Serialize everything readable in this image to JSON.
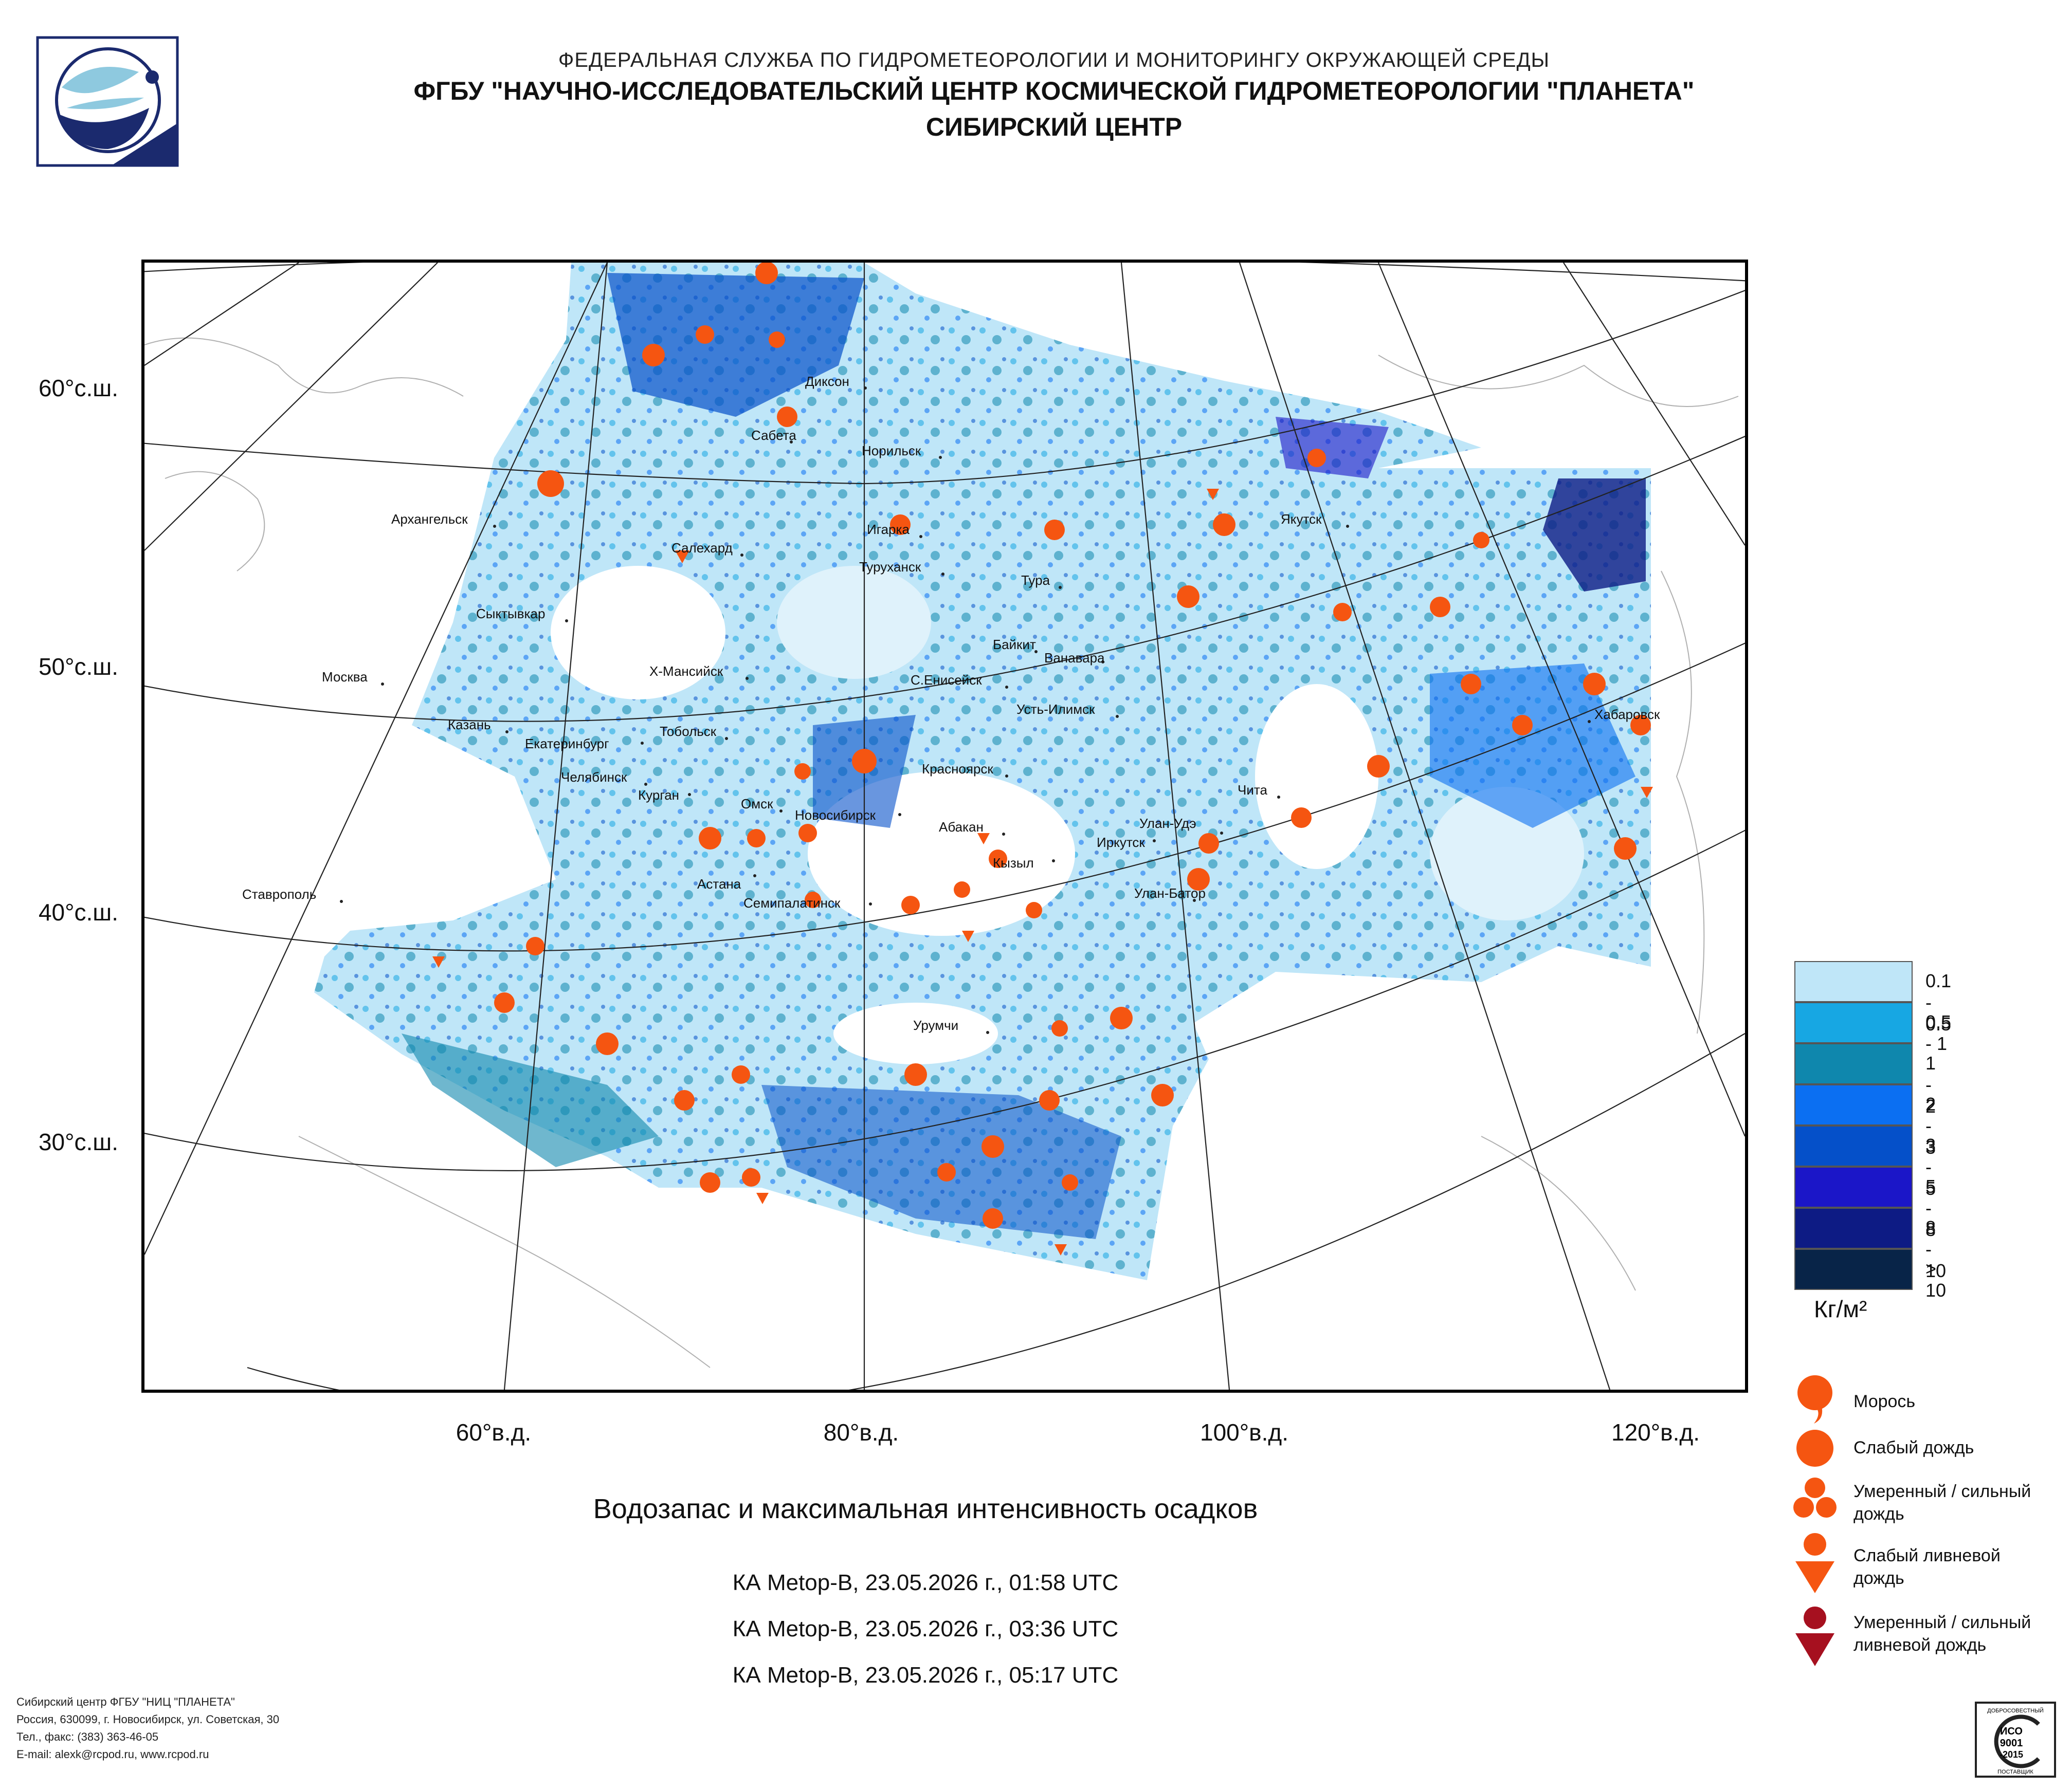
{
  "header": {
    "org": "ФЕДЕРАЛЬНАЯ СЛУЖБА ПО ГИДРОМЕТЕОРОЛОГИИ И МОНИТОРИНГУ ОКРУЖАЮЩЕЙ СРЕДЫ",
    "institute": "ФГБУ \"НАУЧНО-ИССЛЕДОВАТЕЛЬСКИЙ ЦЕНТР КОСМИЧЕСКОЙ ГИДРОМЕТЕОРОЛОГИИ \"ПЛАНЕТА\"",
    "center": "СИБИРСКИЙ ЦЕНТР"
  },
  "map": {
    "lat_labels": [
      "60°с.ш.",
      "50°с.ш.",
      "40°с.ш.",
      "30°с.ш."
    ],
    "lon_labels": [
      "60°в.д.",
      "80°в.д.",
      "100°в.д.",
      "120°в.д."
    ],
    "cities": [
      "Диксон",
      "Сабета",
      "Норильск",
      "Архангельск",
      "Игарка",
      "Салехард",
      "Туруханск",
      "Якутск",
      "Тура",
      "Сыктывкар",
      "Байкит",
      "Ванавара",
      "Москва",
      "Х-Мансийск",
      "С.Енисейск",
      "Усть-Илимск",
      "Хабаровск",
      "Казань",
      "Тобольск",
      "Екатеринбург",
      "Красноярск",
      "Челябинск",
      "Курган",
      "Чита",
      "Омск",
      "Новосибирск",
      "Улан-Удэ",
      "Абакан",
      "Иркутск",
      "Кызыл",
      "Астана",
      "Ставрополь",
      "Улан-Батор",
      "Семипалатинск",
      "Урумчи"
    ]
  },
  "legend": {
    "scale": [
      {
        "label": "0.1 - 0.5",
        "color": "#bfe6f8"
      },
      {
        "label": "0.5 - 1",
        "color": "#17a7e3"
      },
      {
        "label": "1 - 2",
        "color": "#0f87ad"
      },
      {
        "label": "2 - 3",
        "color": "#0b6ff2"
      },
      {
        "label": "3 - 5",
        "color": "#0550c9"
      },
      {
        "label": "5 - 8",
        "color": "#1b16c8"
      },
      {
        "label": "8 - 10",
        "color": "#0d1b84"
      },
      {
        "label": "> 10",
        "color": "#082448"
      }
    ],
    "unit": "Кг/м²",
    "symbols": [
      {
        "label": "Морось",
        "icon": "drizzle-icon",
        "color": "#f55511"
      },
      {
        "label": "Слабый дождь",
        "icon": "light-rain-icon",
        "color": "#f55511"
      },
      {
        "label": "Умеренный / сильный дождь",
        "icon": "moderate-rain-icon",
        "color": "#f55511"
      },
      {
        "label": "Слабый ливневой дождь",
        "icon": "light-shower-icon",
        "color": "#f55511"
      },
      {
        "label": "Умеренный / сильный ливневой дождь",
        "icon": "heavy-shower-icon",
        "color": "#a6101f"
      }
    ]
  },
  "caption": {
    "title": "Водозапас и максимальная интенсивность осадков",
    "passes": [
      "КА Metop-B, 23.05.2026 г., 01:58 UTC",
      "КА Metop-B, 23.05.2026 г., 03:36 UTC",
      "КА Metop-B, 23.05.2026 г., 05:17 UTC"
    ]
  },
  "footer": {
    "lines": [
      "Сибирский центр ФГБУ \"НИЦ \"ПЛАНЕТА\"",
      "Россия, 630099, г. Новосибирск, ул. Советская, 30",
      "Тел., факс: (383) 363-46-05",
      "E-mail: alexk@rcpod.ru, www.rcpod.ru"
    ]
  },
  "iso_badge": {
    "top_text": "ДОБРОСОВЕСТНЫЙ",
    "iso": "ИСО",
    "num": "9001",
    "year": "-2015",
    "bottom_text": "ПОСТАВЩИК"
  }
}
